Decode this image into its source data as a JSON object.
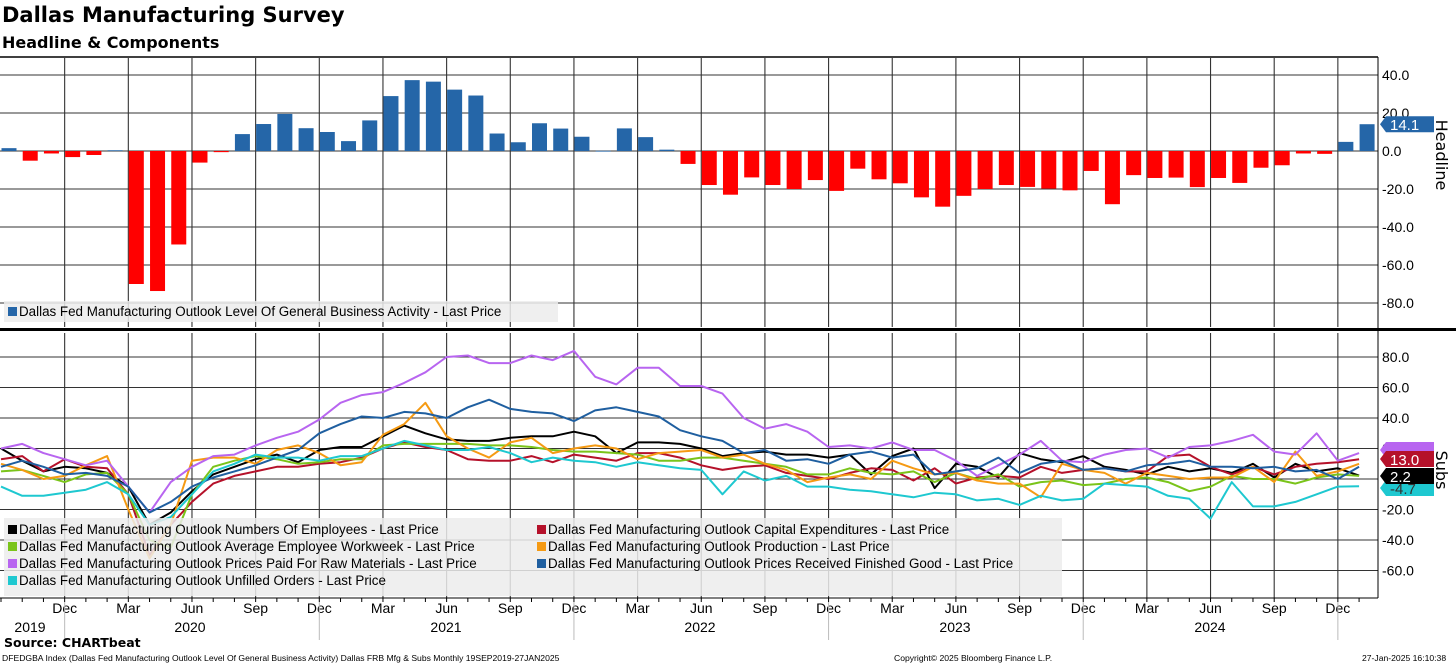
{
  "header": {
    "title": "Dallas Manufacturing Survey",
    "subtitle": "Headline & Components"
  },
  "chart_data": [
    {
      "type": "bar",
      "panel": "Headline",
      "ylabel": "Headline",
      "x_start": "2019-09",
      "x_end": "2025-01",
      "frequency": "monthly",
      "ylim": [
        -92,
        49
      ],
      "yticks": [
        40,
        20,
        0,
        -20,
        -40,
        -60,
        -80
      ],
      "grid": true,
      "legend_placement": "bottom-left",
      "series": [
        {
          "name": "Dallas Fed Manufacturing Outlook Level Of General Business Activity - Last Price",
          "color_positive": "#2566a8",
          "color_negative": "#ff0000",
          "last_value_label": "14.1",
          "values": [
            1.5,
            -5.1,
            -1.3,
            -3.2,
            -2.1,
            0.4,
            -70.0,
            -73.7,
            -49.2,
            -6.1,
            -0.6,
            8.9,
            14.2,
            19.5,
            12.0,
            10.0,
            5.2,
            16.1,
            28.9,
            37.3,
            36.5,
            32.3,
            29.2,
            9.2,
            4.6,
            14.6,
            11.8,
            7.5,
            0.1,
            11.9,
            7.3,
            0.7,
            -6.8,
            -17.9,
            -23.0,
            -13.9,
            -17.9,
            -20.0,
            -15.3,
            -21.0,
            -9.3,
            -14.9,
            -17.0,
            -24.4,
            -29.3,
            -23.6,
            -20.0,
            -17.9,
            -18.9,
            -19.8,
            -20.7,
            -10.5,
            -28.0,
            -12.7,
            -14.2,
            -14.0,
            -19.0,
            -14.2,
            -16.8,
            -8.8,
            -7.5,
            -1.3,
            -1.5,
            4.8,
            14.1
          ]
        }
      ]
    },
    {
      "type": "line",
      "panel": "Subs",
      "ylabel": "Subs",
      "x_start": "2019-09",
      "x_end": "2025-01",
      "frequency": "monthly",
      "ylim": [
        -78,
        95
      ],
      "yticks": [
        80,
        60,
        40,
        20,
        -20,
        -40,
        -60
      ],
      "gridlines": [
        80,
        60,
        40,
        20,
        0,
        -20,
        -40,
        -60
      ],
      "grid": true,
      "legend_placement": "bottom-left",
      "series": [
        {
          "name": "Dallas Fed Manufacturing Outlook Numbers Of Employees - Last Price",
          "color": "#000000",
          "last_value_label": "2.2",
          "values": [
            20,
            12,
            5,
            8,
            7,
            4,
            -5,
            -30,
            -22,
            -8,
            3,
            8,
            13,
            16,
            11,
            19,
            21,
            21,
            28,
            35,
            30,
            26,
            25,
            25,
            27,
            28,
            28,
            31,
            28,
            17,
            24,
            24,
            23,
            20,
            15,
            17,
            18,
            16,
            16,
            14,
            16,
            3,
            15,
            20,
            -6,
            10,
            8,
            1,
            17,
            13,
            11,
            15,
            8,
            6,
            3,
            8,
            5,
            7,
            4,
            10,
            1,
            10,
            5,
            7,
            2.2
          ]
        },
        {
          "name": "Dallas Fed Manufacturing Outlook Capital Expenditures - Last Price",
          "color": "#b5112a",
          "last_value_label": "13.0",
          "values": [
            13,
            15,
            5,
            13,
            8,
            7,
            -10,
            -50,
            -30,
            -15,
            -3,
            2,
            5,
            8,
            8,
            10,
            11,
            14,
            20,
            24,
            21,
            19,
            13,
            12,
            12,
            15,
            11,
            16,
            14,
            12,
            17,
            17,
            14,
            9,
            6,
            8,
            9,
            4,
            2,
            0,
            4,
            7,
            6,
            -1,
            7,
            -3,
            1,
            2,
            1,
            8,
            4,
            6,
            7,
            5,
            5,
            15,
            16,
            8,
            3,
            8,
            3,
            8,
            10,
            11,
            13
          ]
        },
        {
          "name": "Dallas Fed Manufacturing Outlook Average Employee Workweek - Last Price",
          "color": "#7ac41a",
          "values": [
            5,
            6,
            2,
            -2,
            3,
            4,
            -10,
            -40,
            -45,
            -10,
            8,
            12,
            15,
            13,
            10,
            11,
            13,
            13,
            22,
            23,
            23,
            23,
            23,
            22,
            22,
            21,
            19,
            18,
            18,
            17,
            16,
            12,
            12,
            14,
            14,
            12,
            10,
            8,
            3,
            3,
            7,
            4,
            3,
            5,
            -2,
            4,
            0,
            3,
            -5,
            -2,
            -1,
            -4,
            -3,
            0,
            1,
            -2,
            -8,
            -5,
            2,
            0,
            0,
            -3,
            1,
            3,
            2
          ]
        },
        {
          "name": "Dallas Fed Manufacturing Outlook Production - Last Price",
          "color": "#f59a13",
          "values": [
            10,
            6,
            0,
            2,
            9,
            15,
            -20,
            -52,
            -30,
            12,
            14,
            14,
            10,
            19,
            22,
            17,
            9,
            11,
            29,
            36,
            50,
            28,
            20,
            14,
            24,
            27,
            17,
            20,
            22,
            20,
            13,
            17,
            18,
            19,
            14,
            16,
            10,
            6,
            -2,
            1,
            3,
            0,
            12,
            7,
            3,
            4,
            -1,
            -3,
            -3,
            -12,
            10,
            6,
            4,
            -3,
            4,
            2,
            0,
            1,
            1,
            8,
            -2,
            18,
            2,
            5,
            10
          ]
        },
        {
          "name": "Dallas Fed Manufacturing Outlook Prices Paid For Raw Materials - Last Price",
          "color": "#b865f0",
          "values": [
            20,
            23,
            17,
            13,
            9,
            12,
            -5,
            -22,
            -2,
            8,
            15,
            16,
            22,
            27,
            31,
            39,
            50,
            55,
            57,
            63,
            70,
            80,
            81,
            76,
            76,
            81,
            78,
            84,
            67,
            62,
            73,
            73,
            61,
            61,
            56,
            40,
            33,
            36,
            31,
            21,
            22,
            20,
            24,
            19,
            19,
            12,
            2,
            9,
            16,
            25,
            12,
            11,
            16,
            19,
            20,
            14,
            21,
            22,
            25,
            29,
            18,
            16,
            30,
            12,
            17
          ]
        },
        {
          "name": "Dallas Fed Manufacturing Outlook Prices Received Finished Good - Last Price",
          "color": "#1f5fa0",
          "values": [
            8,
            12,
            8,
            3,
            4,
            2,
            -5,
            -22,
            -15,
            -5,
            1,
            5,
            9,
            14,
            19,
            30,
            36,
            41,
            40,
            44,
            43,
            40,
            47,
            52,
            46,
            44,
            43,
            38,
            45,
            47,
            44,
            41,
            32,
            28,
            25,
            17,
            19,
            12,
            13,
            10,
            16,
            18,
            14,
            16,
            3,
            5,
            7,
            14,
            4,
            10,
            12,
            6,
            7,
            5,
            9,
            10,
            12,
            8,
            8,
            7,
            8,
            5,
            6,
            0,
            8
          ]
        },
        {
          "name": "Dallas Fed Manufacturing Outlook Unfilled Orders - Last Price",
          "color": "#1ec8d0",
          "last_value_label": "-4.7",
          "values": [
            -5,
            -11,
            -11,
            -9,
            -7,
            -2,
            -10,
            -30,
            -25,
            -10,
            5,
            10,
            16,
            14,
            14,
            12,
            15,
            15,
            20,
            25,
            22,
            19,
            19,
            21,
            17,
            11,
            14,
            12,
            11,
            8,
            11,
            9,
            7,
            6,
            -10,
            5,
            -1,
            2,
            -5,
            -5,
            -7,
            -8,
            -10,
            -12,
            -9,
            -10,
            -14,
            -13,
            -17,
            -11,
            -14,
            -13,
            -3,
            -4,
            -5,
            -11,
            -13,
            -26,
            -2,
            -18,
            -18,
            -15,
            -10,
            -5,
            -4.7
          ]
        }
      ]
    }
  ],
  "x_axis": {
    "month_labels": [
      "Dec",
      "Mar",
      "Jun",
      "Sep",
      "Dec",
      "Mar",
      "Jun",
      "Sep",
      "Dec",
      "Mar",
      "Jun",
      "Sep",
      "Dec",
      "Mar",
      "Jun",
      "Sep",
      "Dec",
      "Mar",
      "Jun",
      "Sep",
      "Dec"
    ],
    "year_labels": [
      "2019",
      "2020",
      "2021",
      "2022",
      "2023",
      "2024"
    ]
  },
  "footer": {
    "source": "Source: CHARTbeat",
    "info": "DFEDGBA Index (Dallas Fed Manufacturing Outlook Level Of General Business Activity) Dallas FRB Mfg & Subs  Monthly 19SEP2019-27JAN2025",
    "copyright": "Copyright© 2025 Bloomberg Finance L.P.",
    "timestamp": "27-Jan-2025 16:10:38"
  }
}
